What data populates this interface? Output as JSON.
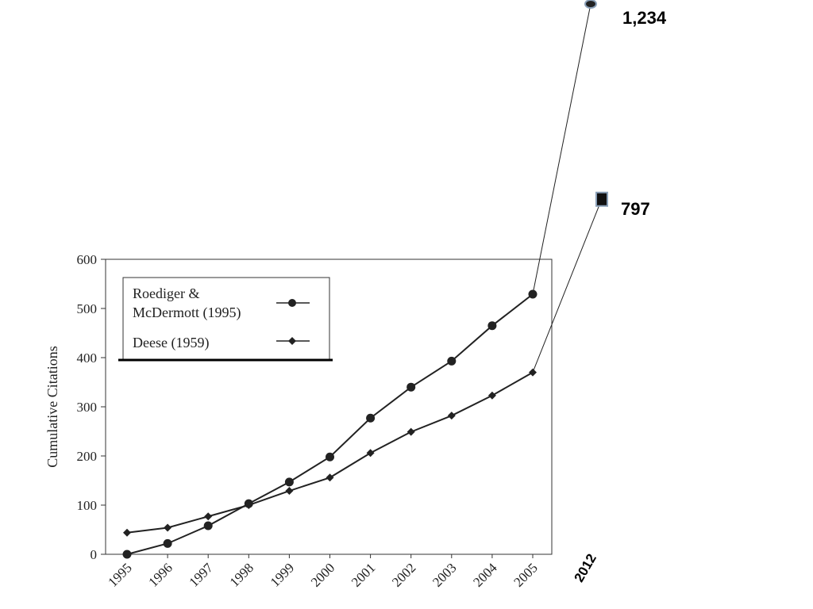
{
  "chart_data": {
    "type": "line",
    "ylabel": "Cumulative Citations",
    "xlabel": "",
    "ylim": [
      0,
      600
    ],
    "y_ticks": [
      "0",
      "100",
      "200",
      "300",
      "400",
      "500",
      "600"
    ],
    "x": [
      "1995",
      "1996",
      "1997",
      "1998",
      "1999",
      "2000",
      "2001",
      "2002",
      "2003",
      "2004",
      "2005"
    ],
    "series": [
      {
        "name": "Roediger & McDermott (1995)",
        "legend_lines": [
          "Roediger &",
          "McDermott (1995)"
        ],
        "marker": "circle",
        "values": [
          0,
          22,
          58,
          103,
          147,
          198,
          277,
          340,
          393,
          465,
          529
        ]
      },
      {
        "name": "Deese (1959)",
        "legend_lines": [
          "Deese (1959)"
        ],
        "marker": "diamond",
        "values": [
          44,
          54,
          77,
          100,
          129,
          156,
          206,
          249,
          282,
          323,
          370
        ]
      }
    ],
    "legend_position": "top-left",
    "grid": false,
    "extension": {
      "x_label": "2012",
      "points": [
        {
          "series": "Roediger & McDermott (1995)",
          "from_x": "2005",
          "value": 1234,
          "label": "1,234",
          "marker": "ellipse"
        },
        {
          "series": "Deese (1959)",
          "from_x": "2005",
          "value": 797,
          "label": "797",
          "marker": "square"
        }
      ]
    }
  }
}
